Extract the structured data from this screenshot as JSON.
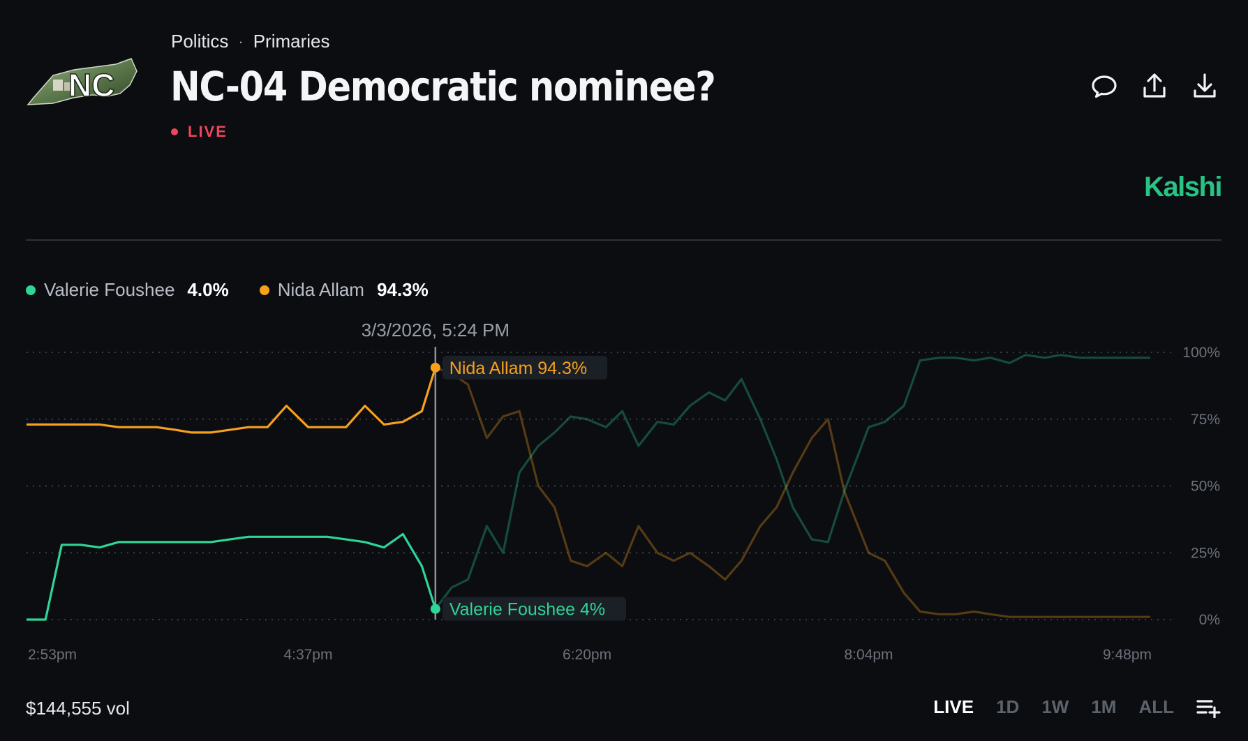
{
  "header": {
    "logo_text": "NC",
    "breadcrumb": [
      "Politics",
      "Primaries"
    ],
    "breadcrumb_separator": "·",
    "title": "NC-04 Democratic nominee?",
    "status": "LIVE",
    "brand": "Kalshi"
  },
  "actions": [
    {
      "name": "comment-icon"
    },
    {
      "name": "share-icon"
    },
    {
      "name": "download-icon"
    }
  ],
  "legend": [
    {
      "name": "Valerie Foushee",
      "value": "4.0%",
      "color": "#2fd497"
    },
    {
      "name": "Nida Allam",
      "value": "94.3%",
      "color": "#f7a01e"
    }
  ],
  "chart_data": {
    "type": "line",
    "hover_label": "3/3/2026, 5:24 PM",
    "hover_time": "5:24pm",
    "x_ticks": [
      "2:53pm",
      "4:37pm",
      "6:20pm",
      "8:04pm",
      "9:48pm"
    ],
    "y_ticks": [
      "0%",
      "25%",
      "50%",
      "75%",
      "100%"
    ],
    "ylim": [
      0,
      100
    ],
    "xlim": [
      "2:53pm",
      "9:48pm"
    ],
    "grid": true,
    "x": [
      "2:53pm",
      "3:00pm",
      "3:06pm",
      "3:13pm",
      "3:20pm",
      "3:27pm",
      "3:34pm",
      "3:41pm",
      "3:48pm",
      "3:54pm",
      "4:01pm",
      "4:08pm",
      "4:15pm",
      "4:22pm",
      "4:29pm",
      "4:37pm",
      "4:44pm",
      "4:51pm",
      "4:58pm",
      "5:05pm",
      "5:12pm",
      "5:19pm",
      "5:24pm",
      "5:30pm",
      "5:36pm",
      "5:43pm",
      "5:49pm",
      "5:55pm",
      "6:02pm",
      "6:08pm",
      "6:14pm",
      "6:20pm",
      "6:27pm",
      "6:33pm",
      "6:39pm",
      "6:46pm",
      "6:52pm",
      "6:58pm",
      "7:05pm",
      "7:11pm",
      "7:17pm",
      "7:24pm",
      "7:30pm",
      "7:36pm",
      "7:43pm",
      "7:49pm",
      "7:55pm",
      "8:04pm",
      "8:10pm",
      "8:17pm",
      "8:23pm",
      "8:30pm",
      "8:36pm",
      "8:43pm",
      "8:49pm",
      "8:56pm",
      "9:02pm",
      "9:09pm",
      "9:15pm",
      "9:22pm",
      "9:28pm",
      "9:35pm",
      "9:41pm",
      "9:48pm"
    ],
    "series": [
      {
        "name": "Valerie Foushee",
        "color": "#2fd497",
        "values": [
          0,
          0,
          28,
          28,
          27,
          29,
          29,
          29,
          29,
          29,
          29,
          30,
          31,
          31,
          31,
          31,
          31,
          30,
          29,
          27,
          32,
          20,
          4,
          12,
          15,
          35,
          25,
          55,
          65,
          70,
          76,
          75,
          72,
          78,
          65,
          74,
          73,
          80,
          85,
          82,
          90,
          75,
          60,
          42,
          30,
          29,
          48,
          72,
          74,
          80,
          97,
          98,
          98,
          97,
          98,
          96,
          99,
          98,
          99,
          98,
          98,
          98,
          98,
          98
        ]
      },
      {
        "name": "Nida Allam",
        "color": "#f7a01e",
        "values": [
          73,
          73,
          73,
          73,
          73,
          72,
          72,
          72,
          71,
          70,
          70,
          71,
          72,
          72,
          80,
          72,
          72,
          72,
          80,
          73,
          74,
          78,
          94.3,
          92,
          88,
          68,
          76,
          78,
          50,
          42,
          22,
          20,
          25,
          20,
          35,
          25,
          22,
          25,
          20,
          15,
          22,
          35,
          42,
          55,
          68,
          75,
          48,
          25,
          22,
          10,
          3,
          2,
          2,
          3,
          2,
          1,
          1,
          1,
          1,
          1,
          1,
          1,
          1,
          1
        ]
      }
    ]
  },
  "footer": {
    "volume": "$144,555 vol",
    "ranges": [
      "LIVE",
      "1D",
      "1W",
      "1M",
      "ALL"
    ],
    "active_range": "LIVE"
  }
}
